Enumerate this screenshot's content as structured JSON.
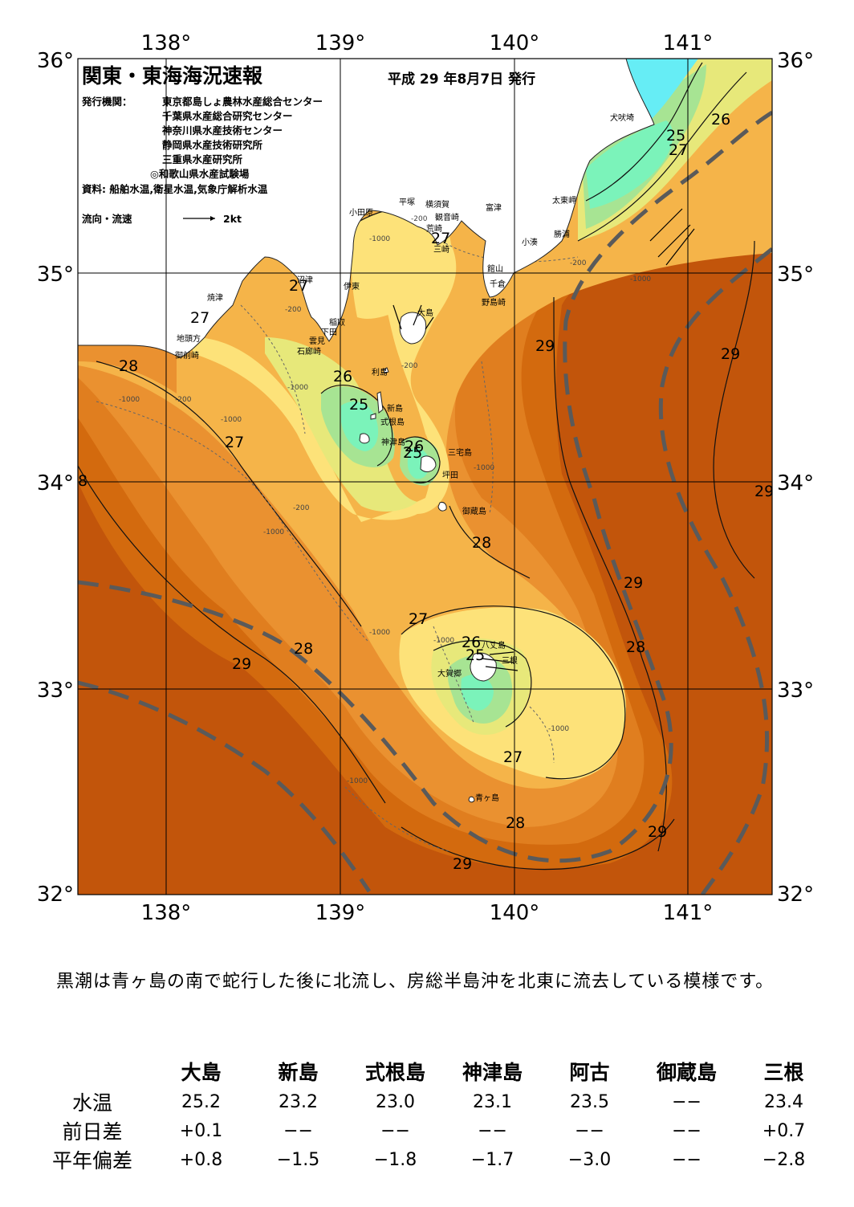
{
  "header": {
    "title": "関東・東海海況速報",
    "issue_date": "平成 29 年8月7日 発行",
    "agency_label": "発行機関：",
    "agencies": [
      "東京都島しょ農林水産総合センター",
      "千葉県水産総合研究センター",
      "神奈川県水産技術センター",
      "静岡県水産技術研究所",
      "三重県水産研究所",
      "◎和歌山県水産試験場"
    ],
    "sources": "資料: 船舶水温,衛星水温,気象庁解析水温",
    "legend_label": "流向・流速",
    "legend_scale": "2kt"
  },
  "axes": {
    "lon_labels": [
      "138°",
      "139°",
      "140°",
      "141°"
    ],
    "lat_labels": [
      "36°",
      "35°",
      "34°",
      "33°",
      "32°"
    ]
  },
  "contour_labels": [
    "26",
    "25",
    "27",
    "27",
    "27",
    "27",
    "28",
    "29",
    "29",
    "26",
    "25",
    "27",
    "26",
    "25",
    "28",
    "29",
    "27",
    "28",
    "29",
    "28",
    "26",
    "25",
    "27",
    "28",
    "29",
    "29",
    "8",
    "29"
  ],
  "depth_labels": [
    "-200",
    "-1000",
    "-200",
    "-1000",
    "-1000",
    "-200",
    "-1000",
    "-200",
    "-1000",
    "-1000",
    "-200",
    "-1000",
    "-1000",
    "-200",
    "-1000",
    "-1000",
    "-1000"
  ],
  "place_names": [
    "犬吠埼",
    "太東岬",
    "勝浦",
    "小湊",
    "富津",
    "横須賀",
    "観音崎",
    "荒崎",
    "平塚",
    "小田原",
    "三崎",
    "館山",
    "千倉",
    "野島崎",
    "大島",
    "伊東",
    "稲取",
    "下田",
    "雲見",
    "石廊崎",
    "沼津",
    "焼津",
    "地頭方",
    "御前崎",
    "利島",
    "新島",
    "式根島",
    "神津島",
    "三宅島",
    "坪田",
    "御蔵島",
    "八丈島",
    "三根",
    "大賀郷",
    "青ヶ島"
  ],
  "colors": {
    "c24": "#7bf3ba",
    "c25": "#a7e493",
    "c26": "#e7e87a",
    "c27": "#fde279",
    "c27_5": "#f5b449",
    "c28": "#ea9130",
    "c28_5": "#e07e1f",
    "c29": "#d36a0e",
    "c29_5": "#c2550b",
    "cold": "#66edf5",
    "kuroshio_axis": "#5a5a5a"
  },
  "summary": "黒潮は青ヶ島の南で蛇行した後に北流し、房総半島沖を北東に流去している模様です。",
  "table": {
    "columns": [
      "大島",
      "新島",
      "式根島",
      "神津島",
      "阿古",
      "御蔵島",
      "三根"
    ],
    "rows": [
      {
        "label": "水温",
        "values": [
          "25.2",
          "23.2",
          "23.0",
          "23.1",
          "23.5",
          "−−",
          "23.4"
        ]
      },
      {
        "label": "前日差",
        "values": [
          "+0.1",
          "−−",
          "−−",
          "−−",
          "−−",
          "−−",
          "+0.7"
        ]
      },
      {
        "label": "平年偏差",
        "values": [
          "+0.8",
          "−1.5",
          "−1.8",
          "−1.7",
          "−3.0",
          "−−",
          "−2.8"
        ]
      }
    ]
  }
}
